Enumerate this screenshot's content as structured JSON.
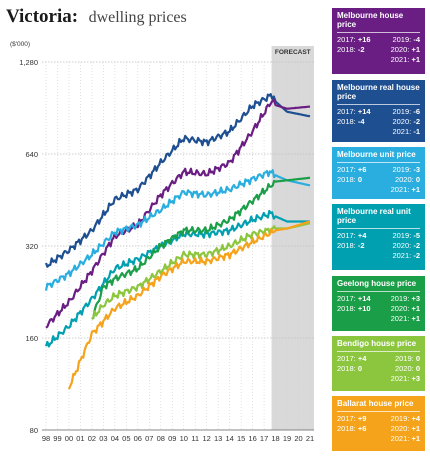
{
  "title": {
    "bold": "Victoria:",
    "light": "dwelling prices"
  },
  "forecast_label": "FORECAST",
  "chart_data": {
    "type": "line",
    "y_unit": "($'000)",
    "y_scale": "log",
    "ylim": [
      80,
      1280
    ],
    "y_ticks": [
      "1,280",
      "640",
      "320",
      "160",
      "80"
    ],
    "x_ticks": [
      "98",
      "99",
      "00",
      "01",
      "02",
      "03",
      "04",
      "05",
      "06",
      "07",
      "08",
      "09",
      "10",
      "11",
      "12",
      "13",
      "14",
      "15",
      "16",
      "17",
      "18",
      "19",
      "20",
      "21"
    ],
    "forecast_from": 2018,
    "series": [
      {
        "color": "#1d4f91",
        "values": [
          [
            1998,
            275
          ],
          [
            2000,
            310
          ],
          [
            2002,
            360
          ],
          [
            2004,
            455
          ],
          [
            2006,
            490
          ],
          [
            2008,
            600
          ],
          [
            2010,
            720
          ],
          [
            2012,
            700
          ],
          [
            2014,
            760
          ],
          [
            2016,
            920
          ],
          [
            2017.7,
            1000
          ],
          [
            2018,
            950
          ],
          [
            2019,
            880
          ],
          [
            2021,
            850
          ]
        ]
      },
      {
        "color": "#6a1e83",
        "values": [
          [
            1998,
            175
          ],
          [
            2000,
            210
          ],
          [
            2002,
            265
          ],
          [
            2004,
            345
          ],
          [
            2006,
            375
          ],
          [
            2008,
            470
          ],
          [
            2010,
            560
          ],
          [
            2012,
            550
          ],
          [
            2014,
            600
          ],
          [
            2016,
            760
          ],
          [
            2017.7,
            960
          ],
          [
            2018,
            925
          ],
          [
            2019,
            900
          ],
          [
            2021,
            915
          ]
        ]
      },
      {
        "color": "#2aaee0",
        "values": [
          [
            1998,
            235
          ],
          [
            2000,
            260
          ],
          [
            2002,
            300
          ],
          [
            2004,
            355
          ],
          [
            2006,
            375
          ],
          [
            2008,
            420
          ],
          [
            2010,
            480
          ],
          [
            2012,
            470
          ],
          [
            2014,
            490
          ],
          [
            2016,
            530
          ],
          [
            2017.5,
            560
          ],
          [
            2018,
            545
          ],
          [
            2019,
            525
          ],
          [
            2021,
            505
          ]
        ]
      },
      {
        "color": "#00a0b0",
        "values": [
          [
            1998,
            150
          ],
          [
            2000,
            175
          ],
          [
            2002,
            215
          ],
          [
            2004,
            270
          ],
          [
            2006,
            290
          ],
          [
            2008,
            320
          ],
          [
            2010,
            350
          ],
          [
            2012,
            350
          ],
          [
            2014,
            360
          ],
          [
            2016,
            390
          ],
          [
            2017.7,
            410
          ],
          [
            2018,
            400
          ],
          [
            2019,
            385
          ],
          [
            2021,
            385
          ]
        ]
      },
      {
        "color": "#1a9e47",
        "values": [
          [
            2002,
            185
          ],
          [
            2003,
            235
          ],
          [
            2004,
            250
          ],
          [
            2006,
            270
          ],
          [
            2008,
            320
          ],
          [
            2010,
            360
          ],
          [
            2012,
            360
          ],
          [
            2014,
            390
          ],
          [
            2016,
            450
          ],
          [
            2018,
            520
          ],
          [
            2019,
            525
          ],
          [
            2021,
            535
          ]
        ]
      },
      {
        "color": "#8cc63f",
        "values": [
          [
            2002,
            185
          ],
          [
            2003,
            205
          ],
          [
            2004,
            220
          ],
          [
            2006,
            235
          ],
          [
            2008,
            265
          ],
          [
            2010,
            300
          ],
          [
            2012,
            300
          ],
          [
            2014,
            320
          ],
          [
            2016,
            350
          ],
          [
            2018,
            365
          ],
          [
            2019,
            365
          ],
          [
            2021,
            380
          ]
        ]
      },
      {
        "color": "#f5a31a",
        "values": [
          [
            2000,
            110
          ],
          [
            2002,
            165
          ],
          [
            2004,
            200
          ],
          [
            2006,
            220
          ],
          [
            2008,
            255
          ],
          [
            2010,
            285
          ],
          [
            2012,
            285
          ],
          [
            2014,
            300
          ],
          [
            2016,
            330
          ],
          [
            2018,
            360
          ],
          [
            2019,
            365
          ],
          [
            2021,
            385
          ]
        ]
      }
    ]
  },
  "panels": [
    {
      "title": "Melbourne house price",
      "bg": "#6a1e83",
      "fg": "#ffffff",
      "rows": [
        [
          "2017:",
          "+16",
          "2019:",
          "-4"
        ],
        [
          "2018:",
          "-2",
          "2020:",
          "+1"
        ],
        [
          "",
          "",
          "2021:",
          "+1"
        ]
      ]
    },
    {
      "title": "Melbourne real house price",
      "bg": "#1d4f91",
      "fg": "#ffffff",
      "rows": [
        [
          "2017:",
          "+14",
          "2019:",
          "-6"
        ],
        [
          "2018:",
          "-4",
          "2020:",
          "-2"
        ],
        [
          "",
          "",
          "2021:",
          "-1"
        ]
      ]
    },
    {
      "title": "Melbourne unit price",
      "bg": "#2aaee0",
      "fg": "#ffffff",
      "rows": [
        [
          "2017:",
          "+6",
          "2019:",
          "-3"
        ],
        [
          "2018:",
          "0",
          "2020:",
          "0"
        ],
        [
          "",
          "",
          "2021:",
          "+1"
        ]
      ]
    },
    {
      "title": "Melbourne real unit price",
      "bg": "#00a0b0",
      "fg": "#ffffff",
      "rows": [
        [
          "2017:",
          "+4",
          "2019:",
          "-5"
        ],
        [
          "2018:",
          "-2",
          "2020:",
          "-2"
        ],
        [
          "",
          "",
          "2021:",
          "-2"
        ]
      ]
    },
    {
      "title": "Geelong house price",
      "bg": "#1a9e47",
      "fg": "#ffffff",
      "rows": [
        [
          "2017:",
          "+14",
          "2019:",
          "+3"
        ],
        [
          "2018:",
          "+10",
          "2020:",
          "+1"
        ],
        [
          "",
          "",
          "2021:",
          "+1"
        ]
      ]
    },
    {
      "title": "Bendigo house price",
      "bg": "#8cc63f",
      "fg": "#ffffff",
      "rows": [
        [
          "2017:",
          "+4",
          "2019:",
          "0"
        ],
        [
          "2018:",
          "0",
          "2020:",
          "0"
        ],
        [
          "",
          "",
          "2021:",
          "+3"
        ]
      ]
    },
    {
      "title": "Ballarat house price",
      "bg": "#f5a31a",
      "fg": "#ffffff",
      "rows": [
        [
          "2017:",
          "+9",
          "2019:",
          "+4"
        ],
        [
          "2018:",
          "+6",
          "2020:",
          "+1"
        ],
        [
          "",
          "",
          "2021:",
          "+1"
        ]
      ]
    }
  ]
}
